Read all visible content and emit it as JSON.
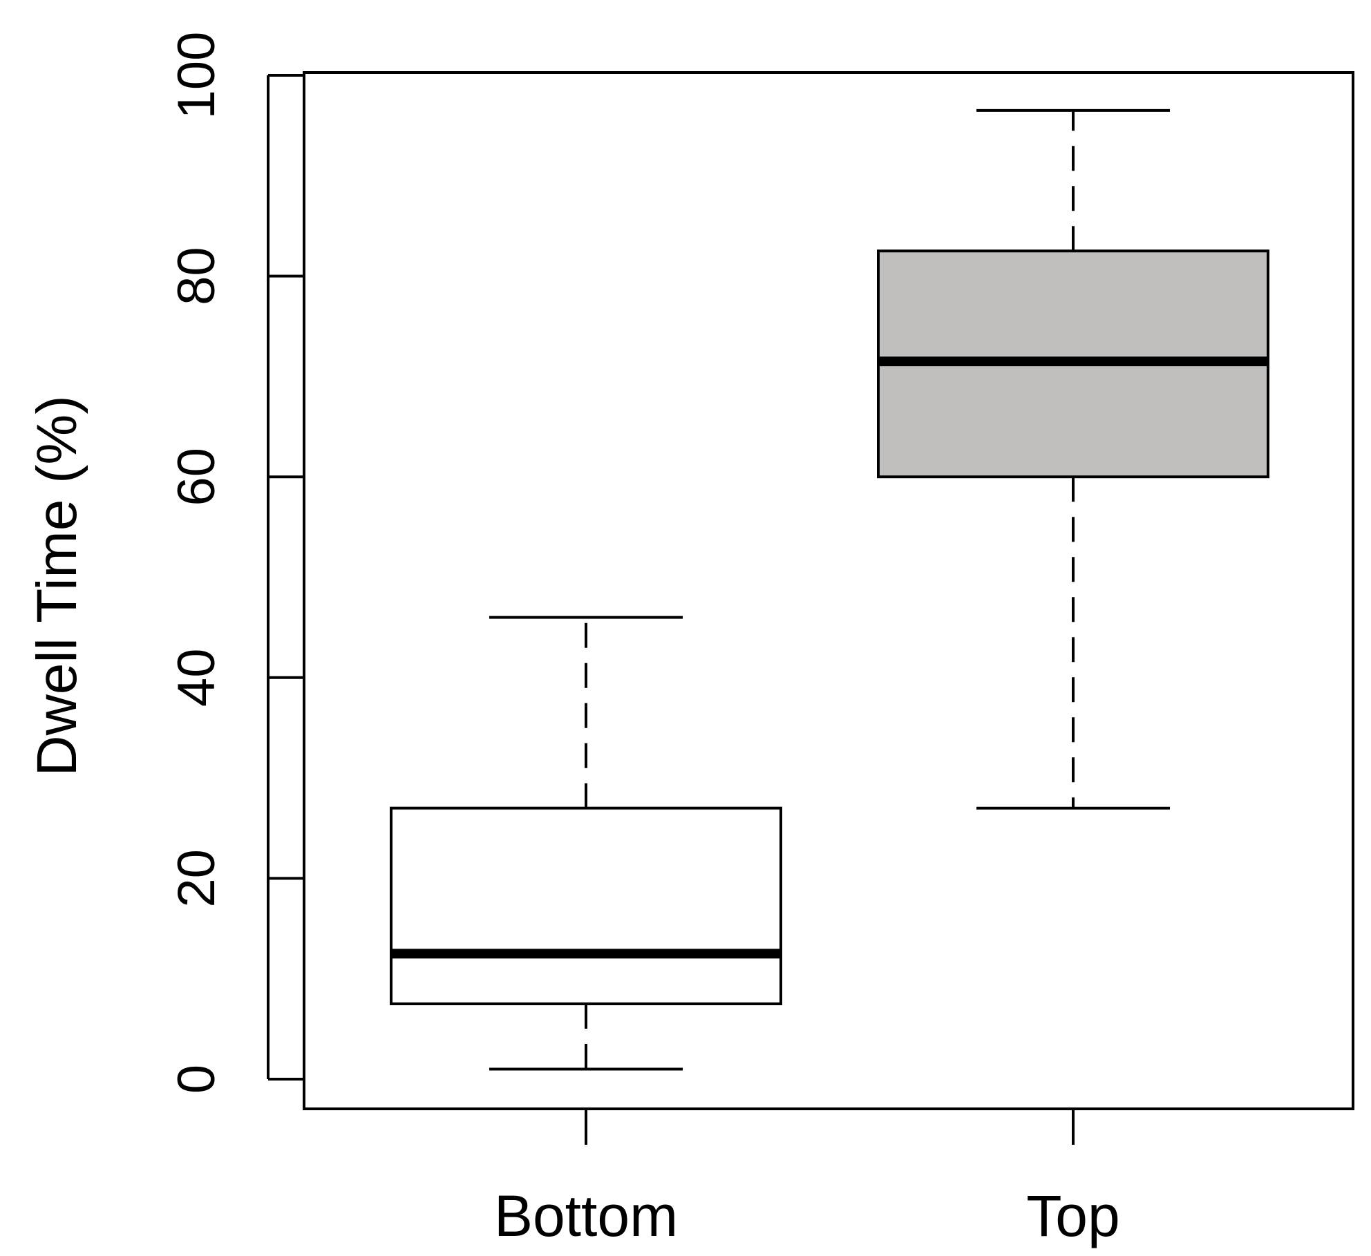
{
  "chart_data": {
    "type": "box",
    "ylabel": "Dwell Time (%)",
    "xlabel": "",
    "title": "",
    "categories": [
      "Bottom",
      "Top"
    ],
    "ylim": [
      -3,
      100
    ],
    "yticks": [
      0,
      20,
      40,
      60,
      80,
      100
    ],
    "grid": false,
    "legend": "none",
    "boxes": [
      {
        "category": "Bottom",
        "whisker_low": 1,
        "q1": 7.5,
        "median": 12.5,
        "q3": 27,
        "whisker_high": 46,
        "fill": "#ffffff"
      },
      {
        "category": "Top",
        "whisker_low": 27,
        "q1": 60,
        "median": 71.5,
        "q3": 82.5,
        "whisker_high": 96.5,
        "fill": "#c0bfbd"
      }
    ]
  }
}
